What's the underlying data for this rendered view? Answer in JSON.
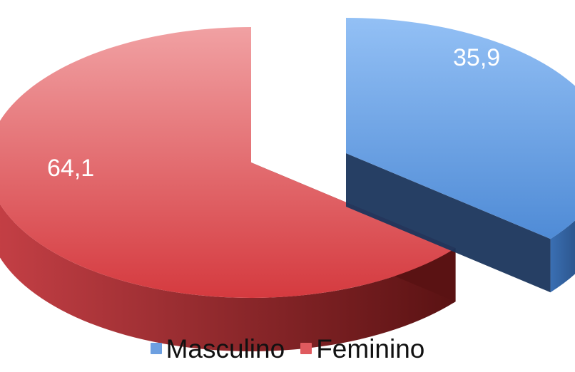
{
  "chart_data": {
    "type": "pie",
    "style": "3d-exploded",
    "title": "",
    "legend_position": "bottom",
    "categories": [
      "Masculino",
      "Feminino"
    ],
    "values": [
      35.9,
      64.1
    ],
    "data_labels": [
      "35,9",
      "64,1"
    ],
    "colors": {
      "Masculino": {
        "top_light": "#93c0f5",
        "top_dark": "#4f8bd6",
        "side_light": "#3a6fb3",
        "side_dark": "#1a355c"
      },
      "Feminino": {
        "top_light": "#f1a1a3",
        "top_dark": "#d53a3f",
        "side_light": "#c64046",
        "side_dark": "#5a1213"
      }
    }
  },
  "legend": {
    "items": [
      {
        "label": "Masculino",
        "color": "#6d9fe0"
      },
      {
        "label": "Feminino",
        "color": "#df5a5e"
      }
    ]
  }
}
